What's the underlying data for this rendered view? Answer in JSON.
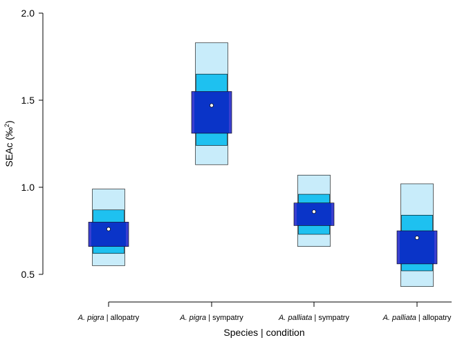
{
  "chart_data": {
    "type": "box",
    "title": "",
    "xlabel": "Species | condition",
    "ylabel_main": "SEAc (‰",
    "ylabel_sup": "2",
    "ylabel_end": ")",
    "ylim": [
      0.35,
      2.0
    ],
    "yticks": [
      0.5,
      1.0,
      1.5,
      2.0
    ],
    "ytick_labels": [
      "0.5",
      "1.0",
      "1.5",
      "2.0"
    ],
    "grid": false,
    "colors": {
      "ci99": "#c8ecfa",
      "ci95": "#1ec1f0",
      "ci50": "#0a34c8",
      "ci50_edge": "#3a3fd0",
      "mode_point": "#ffffff",
      "outline": "#000000"
    },
    "categories": [
      {
        "species": "A. pigra",
        "separator": " | ",
        "condition": "allopatry"
      },
      {
        "species": "A. pigra",
        "separator": " | ",
        "condition": "sympatry"
      },
      {
        "species": "A. palliata",
        "separator": " | ",
        "condition": "sympatry"
      },
      {
        "species": "A. palliata",
        "separator": " | ",
        "condition": "allopatry"
      }
    ],
    "series": [
      {
        "mode": 0.76,
        "ci50": [
          0.66,
          0.8
        ],
        "ci95": [
          0.62,
          0.87
        ],
        "ci99": [
          0.55,
          0.99
        ]
      },
      {
        "mode": 1.47,
        "ci50": [
          1.31,
          1.55
        ],
        "ci95": [
          1.24,
          1.65
        ],
        "ci99": [
          1.13,
          1.83
        ]
      },
      {
        "mode": 0.86,
        "ci50": [
          0.78,
          0.91
        ],
        "ci95": [
          0.73,
          0.96
        ],
        "ci99": [
          0.66,
          1.07
        ]
      },
      {
        "mode": 0.71,
        "ci50": [
          0.56,
          0.75
        ],
        "ci95": [
          0.52,
          0.84
        ],
        "ci99": [
          0.43,
          1.02
        ]
      }
    ]
  }
}
